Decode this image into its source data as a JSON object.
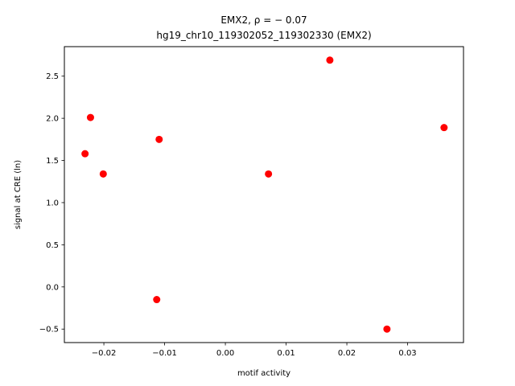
{
  "chart_data": {
    "type": "scatter",
    "title_line1": "EMX2, ρ = − 0.07",
    "title_line2": "hg19_chr10_119302052_119302330 (EMX2)",
    "xlabel": "motif activity",
    "ylabel": "signal at CRE (ln)",
    "xlim": [
      -0.0265,
      0.0392
    ],
    "ylim": [
      -0.66,
      2.85
    ],
    "x_ticks": [
      {
        "value": -0.02,
        "label": "−0.02"
      },
      {
        "value": -0.01,
        "label": "−0.01"
      },
      {
        "value": 0.0,
        "label": "0.00"
      },
      {
        "value": 0.01,
        "label": "0.01"
      },
      {
        "value": 0.02,
        "label": "0.02"
      },
      {
        "value": 0.03,
        "label": "0.03"
      }
    ],
    "y_ticks": [
      {
        "value": -0.5,
        "label": "−0.5"
      },
      {
        "value": 0.0,
        "label": "0.0"
      },
      {
        "value": 0.5,
        "label": "0.5"
      },
      {
        "value": 1.0,
        "label": "1.0"
      },
      {
        "value": 1.5,
        "label": "1.5"
      },
      {
        "value": 2.0,
        "label": "2.0"
      },
      {
        "value": 2.5,
        "label": "2.5"
      }
    ],
    "grid": false,
    "marker_color": "#ff0000",
    "points": [
      {
        "x": -0.0231,
        "y": 1.58
      },
      {
        "x": -0.0222,
        "y": 2.01
      },
      {
        "x": -0.0201,
        "y": 1.34
      },
      {
        "x": -0.0109,
        "y": 1.75
      },
      {
        "x": -0.0113,
        "y": -0.15
      },
      {
        "x": 0.0071,
        "y": 1.34
      },
      {
        "x": 0.0172,
        "y": 2.69
      },
      {
        "x": 0.0266,
        "y": -0.5
      },
      {
        "x": 0.036,
        "y": 1.89
      }
    ]
  }
}
